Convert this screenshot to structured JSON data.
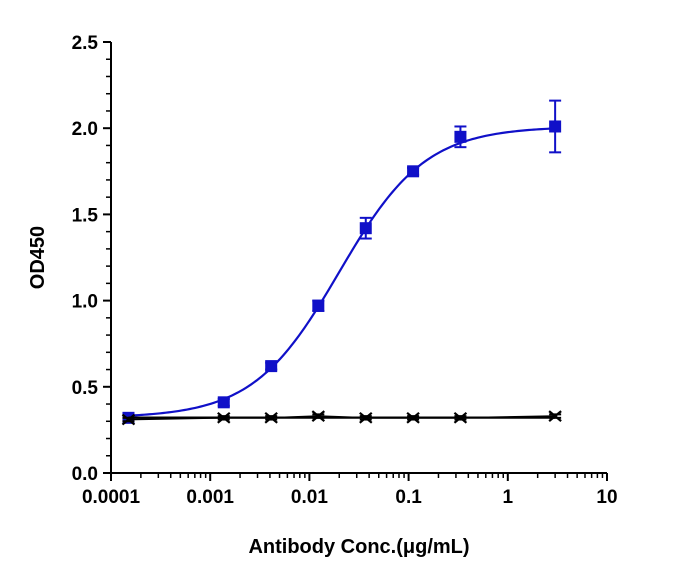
{
  "chart_data": {
    "type": "scatter",
    "title": "",
    "xlabel": "Antibody Conc.(μg/mL)",
    "ylabel": "OD450",
    "x_scale": "log",
    "xlim": [
      0.0001,
      10
    ],
    "ylim": [
      0,
      2.5
    ],
    "x_ticks": [
      0.0001,
      0.001,
      0.01,
      0.1,
      1,
      10
    ],
    "x_tick_labels": [
      "0.0001",
      "0.001",
      "0.01",
      "0.1",
      "1",
      "10"
    ],
    "y_ticks": [
      0,
      0.5,
      1.0,
      1.5,
      2.0,
      2.5
    ],
    "y_tick_labels": [
      "0.0",
      "0.5",
      "1.0",
      "1.5",
      "2.0",
      "2.5"
    ],
    "grid": false,
    "legend": "none",
    "series": [
      {
        "marker": "square",
        "color": "#1010c8",
        "fit": "four-parameter-logistic",
        "x": [
          0.00015,
          0.00137,
          0.00412,
          0.0123,
          0.037,
          0.111,
          0.333,
          3.0
        ],
        "y": [
          0.32,
          0.41,
          0.62,
          0.97,
          1.42,
          1.75,
          1.95,
          2.01
        ],
        "error": [
          0.02,
          0.02,
          0.02,
          0.03,
          0.06,
          0.02,
          0.06,
          0.15
        ]
      },
      {
        "marker": "x",
        "color": "#000000",
        "fit": "four-parameter-logistic",
        "x": [
          0.00015,
          0.00137,
          0.00412,
          0.0123,
          0.037,
          0.111,
          0.333,
          3.0
        ],
        "y": [
          0.31,
          0.32,
          0.32,
          0.33,
          0.32,
          0.32,
          0.32,
          0.33
        ],
        "error": [
          0.01,
          0.01,
          0.01,
          0.01,
          0.01,
          0.01,
          0.01,
          0.01
        ]
      }
    ]
  }
}
